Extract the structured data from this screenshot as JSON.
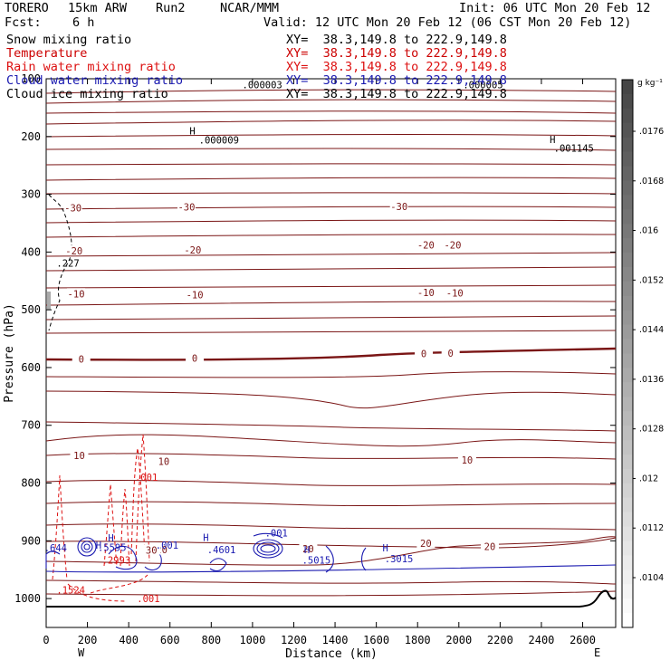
{
  "header": {
    "model": "TORERO",
    "resolution": "15km ARW",
    "run": "Run2",
    "org": "NCAR/MMM",
    "init": "Init: 06 UTC Mon 20 Feb 12",
    "fcst_label": "Fcst:",
    "fcst_value": "6 h",
    "valid": "Valid: 12 UTC Mon 20 Feb 12 (06 CST Mon 20 Feb 12)"
  },
  "fields": [
    {
      "name": "Snow mixing ratio",
      "color": "#000000",
      "xy": "XY=  38.3,149.8 to 222.9,149.8"
    },
    {
      "name": "Temperature",
      "color": "#cc0000",
      "xy": "XY=  38.3,149.8 to 222.9,149.8"
    },
    {
      "name": "Rain water mixing ratio",
      "color": "#dd1111",
      "xy": "XY=  38.3,149.8 to 222.9,149.8"
    },
    {
      "name": "Cloud water mixing ratio",
      "color": "#1a1ab0",
      "xy": "XY=  38.3,149.8 to 222.9,149.8"
    },
    {
      "name": "Cloud ice mixing ratio",
      "color": "#000000",
      "xy": "XY=  38.3,149.8 to 222.9,149.8"
    }
  ],
  "chart_data": {
    "type": "contour-cross-section",
    "xlabel": "Distance (km)",
    "ylabel": "Pressure (hPa)",
    "xlim": [
      0,
      2760
    ],
    "ylim": [
      1050,
      100
    ],
    "x_ticks": [
      0,
      200,
      400,
      600,
      800,
      1000,
      1200,
      1400,
      1600,
      1800,
      2000,
      2200,
      2400,
      2600
    ],
    "y_ticks": [
      200,
      300,
      400,
      500,
      600,
      700,
      800,
      900,
      1000
    ],
    "y_tick_labels_visible": [
      "200",
      "300",
      "400",
      "500",
      "600",
      "700",
      "800",
      "900",
      "1000"
    ],
    "y_tick_label_overlapped": "100",
    "endpoints": {
      "left": "W",
      "right": "E"
    },
    "colorbar": {
      "units": "g kg⁻¹",
      "ticks": [
        ".0104",
        ".0112",
        ".012",
        ".0128",
        ".0136",
        ".0144",
        ".0152",
        ".016",
        ".0168",
        ".0176"
      ]
    },
    "temperature_contours": [
      {
        "label": "-30",
        "positions": [
          [
            130,
            323
          ],
          [
            680,
            322
          ],
          [
            1710,
            321
          ]
        ]
      },
      {
        "label": "-20",
        "positions": [
          [
            135,
            398
          ],
          [
            710,
            396
          ],
          [
            1840,
            388
          ],
          [
            1970,
            388
          ]
        ]
      },
      {
        "label": "-10",
        "positions": [
          [
            145,
            472
          ],
          [
            720,
            474
          ],
          [
            1840,
            470
          ],
          [
            1980,
            471
          ]
        ]
      },
      {
        "label": "0",
        "positions": [
          [
            170,
            585
          ],
          [
            720,
            584
          ],
          [
            1830,
            576
          ],
          [
            1960,
            575
          ]
        ]
      },
      {
        "label": "10",
        "positions": [
          [
            160,
            752
          ],
          [
            570,
            762
          ],
          [
            2040,
            760
          ]
        ]
      },
      {
        "label": "20",
        "positions": [
          [
            560,
            915
          ],
          [
            1840,
            904
          ],
          [
            2150,
            910
          ],
          [
            1270,
            914
          ]
        ]
      },
      {
        "label": "30",
        "positions": [
          [
            510,
            916
          ]
        ]
      }
    ],
    "point_labels": [
      {
        "text": "H",
        "x": 695,
        "p": 190
      },
      {
        "text": ".000009",
        "x": 740,
        "p": 206
      },
      {
        "text": "H",
        "x": 2440,
        "p": 205
      },
      {
        "text": ".001145",
        "x": 2460,
        "p": 220
      },
      {
        "text": ".000003",
        "x": 950,
        "p": 110
      },
      {
        "text": ".000005",
        "x": 2020,
        "p": 110
      },
      {
        "text": ".227",
        "x": 50,
        "p": 419
      },
      {
        "text": ".001",
        "x": 430,
        "p": 790
      },
      {
        "text": ".001",
        "x": 1060,
        "p": 886
      },
      {
        "text": ".001",
        "x": 530,
        "p": 907
      },
      {
        "text": "H",
        "x": 760,
        "p": 894
      },
      {
        "text": ".4601",
        "x": 780,
        "p": 915
      },
      {
        "text": "H",
        "x": 1250,
        "p": 915
      },
      {
        "text": ".5015",
        "x": 1240,
        "p": 933
      },
      {
        "text": "H",
        "x": 1630,
        "p": 912
      },
      {
        "text": ".3015",
        "x": 1640,
        "p": 931
      },
      {
        "text": ".644",
        "x": -10,
        "p": 912
      },
      {
        "text": ".5595",
        "x": 250,
        "p": 911
      },
      {
        "text": "H",
        "x": 240,
        "p": 907
      },
      {
        "text": "H",
        "x": 300,
        "p": 895
      },
      {
        "text": ".2993",
        "x": 270,
        "p": 933
      },
      {
        "text": ".1524",
        "x": 50,
        "p": 985
      },
      {
        "text": ".001",
        "x": 440,
        "p": 1000
      }
    ]
  }
}
